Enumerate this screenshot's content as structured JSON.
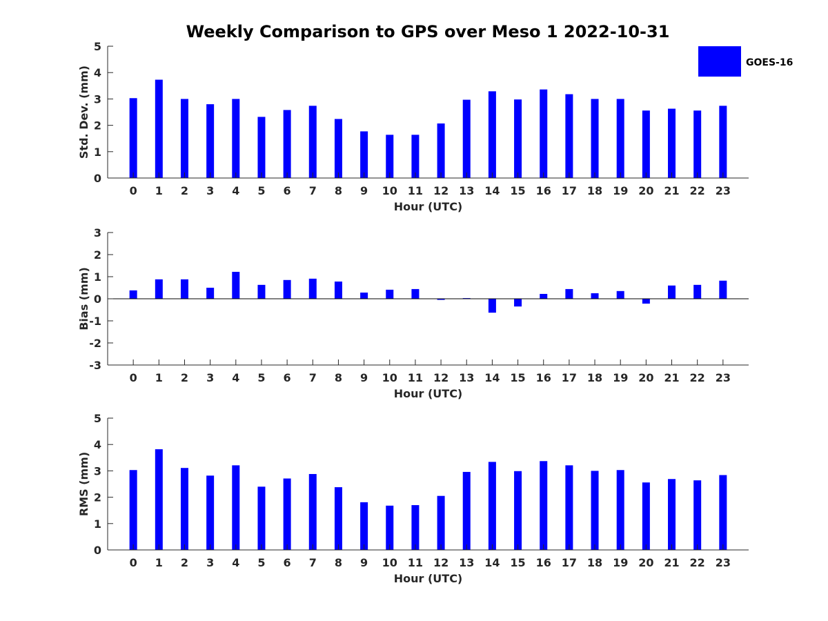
{
  "chart_data": {
    "title": "Weekly Comparison to GPS over Meso 1 2022-10-31",
    "legend": {
      "label": "GOES-16",
      "color": "#0000ff",
      "placement": "top-right"
    },
    "bar_color": "#0000ff",
    "panels": [
      {
        "type": "bar",
        "id": "std-dev",
        "ylabel": "Std. Dev. (mm)",
        "xlabel": "Hour (UTC)",
        "ylim": [
          0,
          5
        ],
        "yticks": [
          0,
          1,
          2,
          3,
          4,
          5
        ],
        "categories": [
          "0",
          "1",
          "2",
          "3",
          "4",
          "5",
          "6",
          "7",
          "8",
          "9",
          "10",
          "11",
          "12",
          "13",
          "14",
          "15",
          "16",
          "17",
          "18",
          "19",
          "20",
          "21",
          "22",
          "23"
        ],
        "series": [
          {
            "name": "GOES-16",
            "values": [
              3.03,
              3.73,
              3.0,
              2.8,
              3.0,
              2.32,
              2.58,
              2.74,
              2.24,
              1.77,
              1.64,
              1.64,
              2.07,
              2.97,
              3.29,
              2.98,
              3.36,
              3.18,
              3.0,
              3.0,
              2.56,
              2.63,
              2.56,
              2.74
            ]
          }
        ],
        "zero_line": false
      },
      {
        "type": "bar",
        "id": "bias",
        "ylabel": "Bias (mm)",
        "xlabel": "Hour (UTC)",
        "ylim": [
          -3,
          3
        ],
        "yticks": [
          -3,
          -2,
          -1,
          0,
          1,
          2,
          3
        ],
        "categories": [
          "0",
          "1",
          "2",
          "3",
          "4",
          "5",
          "6",
          "7",
          "8",
          "9",
          "10",
          "11",
          "12",
          "13",
          "14",
          "15",
          "16",
          "17",
          "18",
          "19",
          "20",
          "21",
          "22",
          "23"
        ],
        "series": [
          {
            "name": "GOES-16",
            "values": [
              0.38,
              0.88,
              0.88,
              0.5,
              1.22,
              0.63,
              0.85,
              0.91,
              0.78,
              0.28,
              0.41,
              0.44,
              -0.05,
              0.03,
              -0.63,
              -0.35,
              0.22,
              0.44,
              0.25,
              0.35,
              -0.22,
              0.6,
              0.63,
              0.82
            ]
          }
        ],
        "zero_line": true
      },
      {
        "type": "bar",
        "id": "rms",
        "ylabel": "RMS (mm)",
        "xlabel": "Hour (UTC)",
        "ylim": [
          0,
          5
        ],
        "yticks": [
          0,
          1,
          2,
          3,
          4,
          5
        ],
        "categories": [
          "0",
          "1",
          "2",
          "3",
          "4",
          "5",
          "6",
          "7",
          "8",
          "9",
          "10",
          "11",
          "12",
          "13",
          "14",
          "15",
          "16",
          "17",
          "18",
          "19",
          "20",
          "21",
          "22",
          "23"
        ],
        "series": [
          {
            "name": "GOES-16",
            "values": [
              3.03,
              3.82,
              3.11,
              2.82,
              3.21,
              2.4,
              2.71,
              2.88,
              2.38,
              1.81,
              1.68,
              1.7,
              2.05,
              2.96,
              3.34,
              2.99,
              3.37,
              3.21,
              3.0,
              3.03,
              2.56,
              2.69,
              2.64,
              2.84
            ]
          }
        ],
        "zero_line": false
      }
    ]
  }
}
